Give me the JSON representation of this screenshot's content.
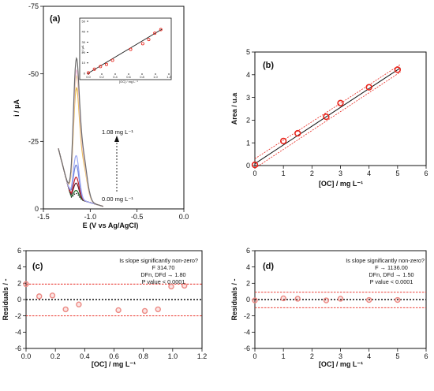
{
  "colors": {
    "red": "#e8251c",
    "black": "#111111",
    "sample_red": "#e8251c"
  },
  "chart_data": [
    {
      "id": "a",
      "type": "line",
      "panel_label": "(a)",
      "xlabel": "E (V vs Ag/AgCl)",
      "ylabel": "i / µA",
      "xlim": [
        -1.5,
        0.0
      ],
      "ylim": [
        0,
        -75
      ],
      "xticks": [
        "-1.5",
        "-1.0",
        "-0.5",
        "0.0"
      ],
      "yticks": [
        "0",
        "-25",
        "-50",
        "-75"
      ],
      "annotation_top": "1.08 mg L⁻¹",
      "annotation_bottom": "0.00 mg L⁻¹",
      "series": [
        {
          "color": "#1a1a1a",
          "style": "dotted",
          "peak": 2.5,
          "base": 20.4
        },
        {
          "color": "#1f6b2a",
          "peak": 3.6,
          "base": 20.4
        },
        {
          "color": "#5c1e2e",
          "peak": 6.3,
          "base": 20.4
        },
        {
          "color": "#c81e2a",
          "peak": 8.5,
          "base": 20.4
        },
        {
          "color": "#6f82d8",
          "peak": 13.0,
          "base": 20.4
        },
        {
          "color": "#9aa7f2",
          "peak": 16.5,
          "base": 20.4
        },
        {
          "color": "#e7b74e",
          "peak": 38.0,
          "base": 20.4
        },
        {
          "color": "#f2dd9e",
          "peak": 42.0,
          "base": 20.4
        },
        {
          "color": "#f2c6e0",
          "peak": 44.0,
          "base": 20.4
        },
        {
          "color": "#6b6b6b",
          "peak": 48.0,
          "base": 20.4
        }
      ],
      "inset": {
        "xlabel": "[OC] / mg L⁻¹",
        "ylabel": "i / µA",
        "xlim": [
          0,
          1.2
        ],
        "ylim": [
          0,
          50
        ],
        "xticks": [
          "0.0",
          "0.2",
          "0.4",
          "0.6",
          "0.8",
          "1.0",
          "1.2"
        ],
        "yticks": [
          "0",
          "10",
          "20",
          "30",
          "40",
          "50"
        ],
        "x": [
          0.0,
          0.09,
          0.18,
          0.27,
          0.36,
          0.63,
          0.81,
          0.9,
          0.99,
          1.08
        ],
        "y": [
          0.5,
          4.0,
          6.5,
          8.5,
          12.5,
          23.0,
          28.5,
          32.5,
          38.5,
          42.0
        ]
      }
    },
    {
      "id": "b",
      "type": "scatter",
      "panel_label": "(b)",
      "xlabel": "[OC] / mg L⁻¹",
      "ylabel": "Area / u.a",
      "xlim": [
        0,
        6
      ],
      "ylim": [
        0,
        5
      ],
      "xticks": [
        "0",
        "1",
        "2",
        "3",
        "4",
        "5",
        "6"
      ],
      "yticks": [
        "0",
        "1",
        "2",
        "3",
        "4",
        "5"
      ],
      "x": [
        0.0,
        1.0,
        1.5,
        2.5,
        3.0,
        4.0,
        5.0
      ],
      "y": [
        0.03,
        1.08,
        1.42,
        2.15,
        2.75,
        3.45,
        4.22
      ]
    },
    {
      "id": "c",
      "type": "scatter",
      "panel_label": "(c)",
      "xlabel": "[OC] / mg L⁻¹",
      "ylabel": "Residuals / -",
      "xlim": [
        0,
        1.2
      ],
      "ylim": [
        -6,
        6
      ],
      "xticks": [
        "0.0",
        "0.2",
        "0.4",
        "0.6",
        "0.8",
        "1.0",
        "1.2"
      ],
      "yticks": [
        "-6",
        "-4",
        "-2",
        "0",
        "2",
        "4",
        "6"
      ],
      "band": [
        -2.0,
        1.9
      ],
      "x": [
        0.0,
        0.09,
        0.18,
        0.27,
        0.36,
        0.63,
        0.81,
        0.9,
        0.99,
        1.08
      ],
      "y": [
        1.9,
        0.4,
        0.5,
        -1.2,
        -0.6,
        -1.3,
        -1.4,
        -1.2,
        1.6,
        1.7
      ],
      "stats": [
        "Is slope significantly non-zero?",
        "F 314.70",
        "DFn, DFd → 1.80",
        "P value < 0.0001"
      ]
    },
    {
      "id": "d",
      "type": "scatter",
      "panel_label": "(d)",
      "xlabel": "[OC] / mg L⁻¹",
      "ylabel": "Residuals / -",
      "xlim": [
        0,
        6
      ],
      "ylim": [
        -6,
        6
      ],
      "xticks": [
        "0",
        "1",
        "2",
        "3",
        "4",
        "5",
        "6"
      ],
      "yticks": [
        "-6",
        "-4",
        "-2",
        "0",
        "2",
        "4",
        "6"
      ],
      "band": [
        -1.0,
        0.9
      ],
      "x": [
        0.0,
        1.0,
        1.5,
        2.5,
        3.0,
        4.0,
        5.0
      ],
      "y": [
        -0.1,
        0.15,
        0.1,
        -0.1,
        0.1,
        -0.05,
        -0.05
      ],
      "stats": [
        "Is slope significantly non-zero?",
        "F →  1136.00",
        "DFn, DFd → 1.50",
        "P value < 0.0001"
      ]
    }
  ]
}
